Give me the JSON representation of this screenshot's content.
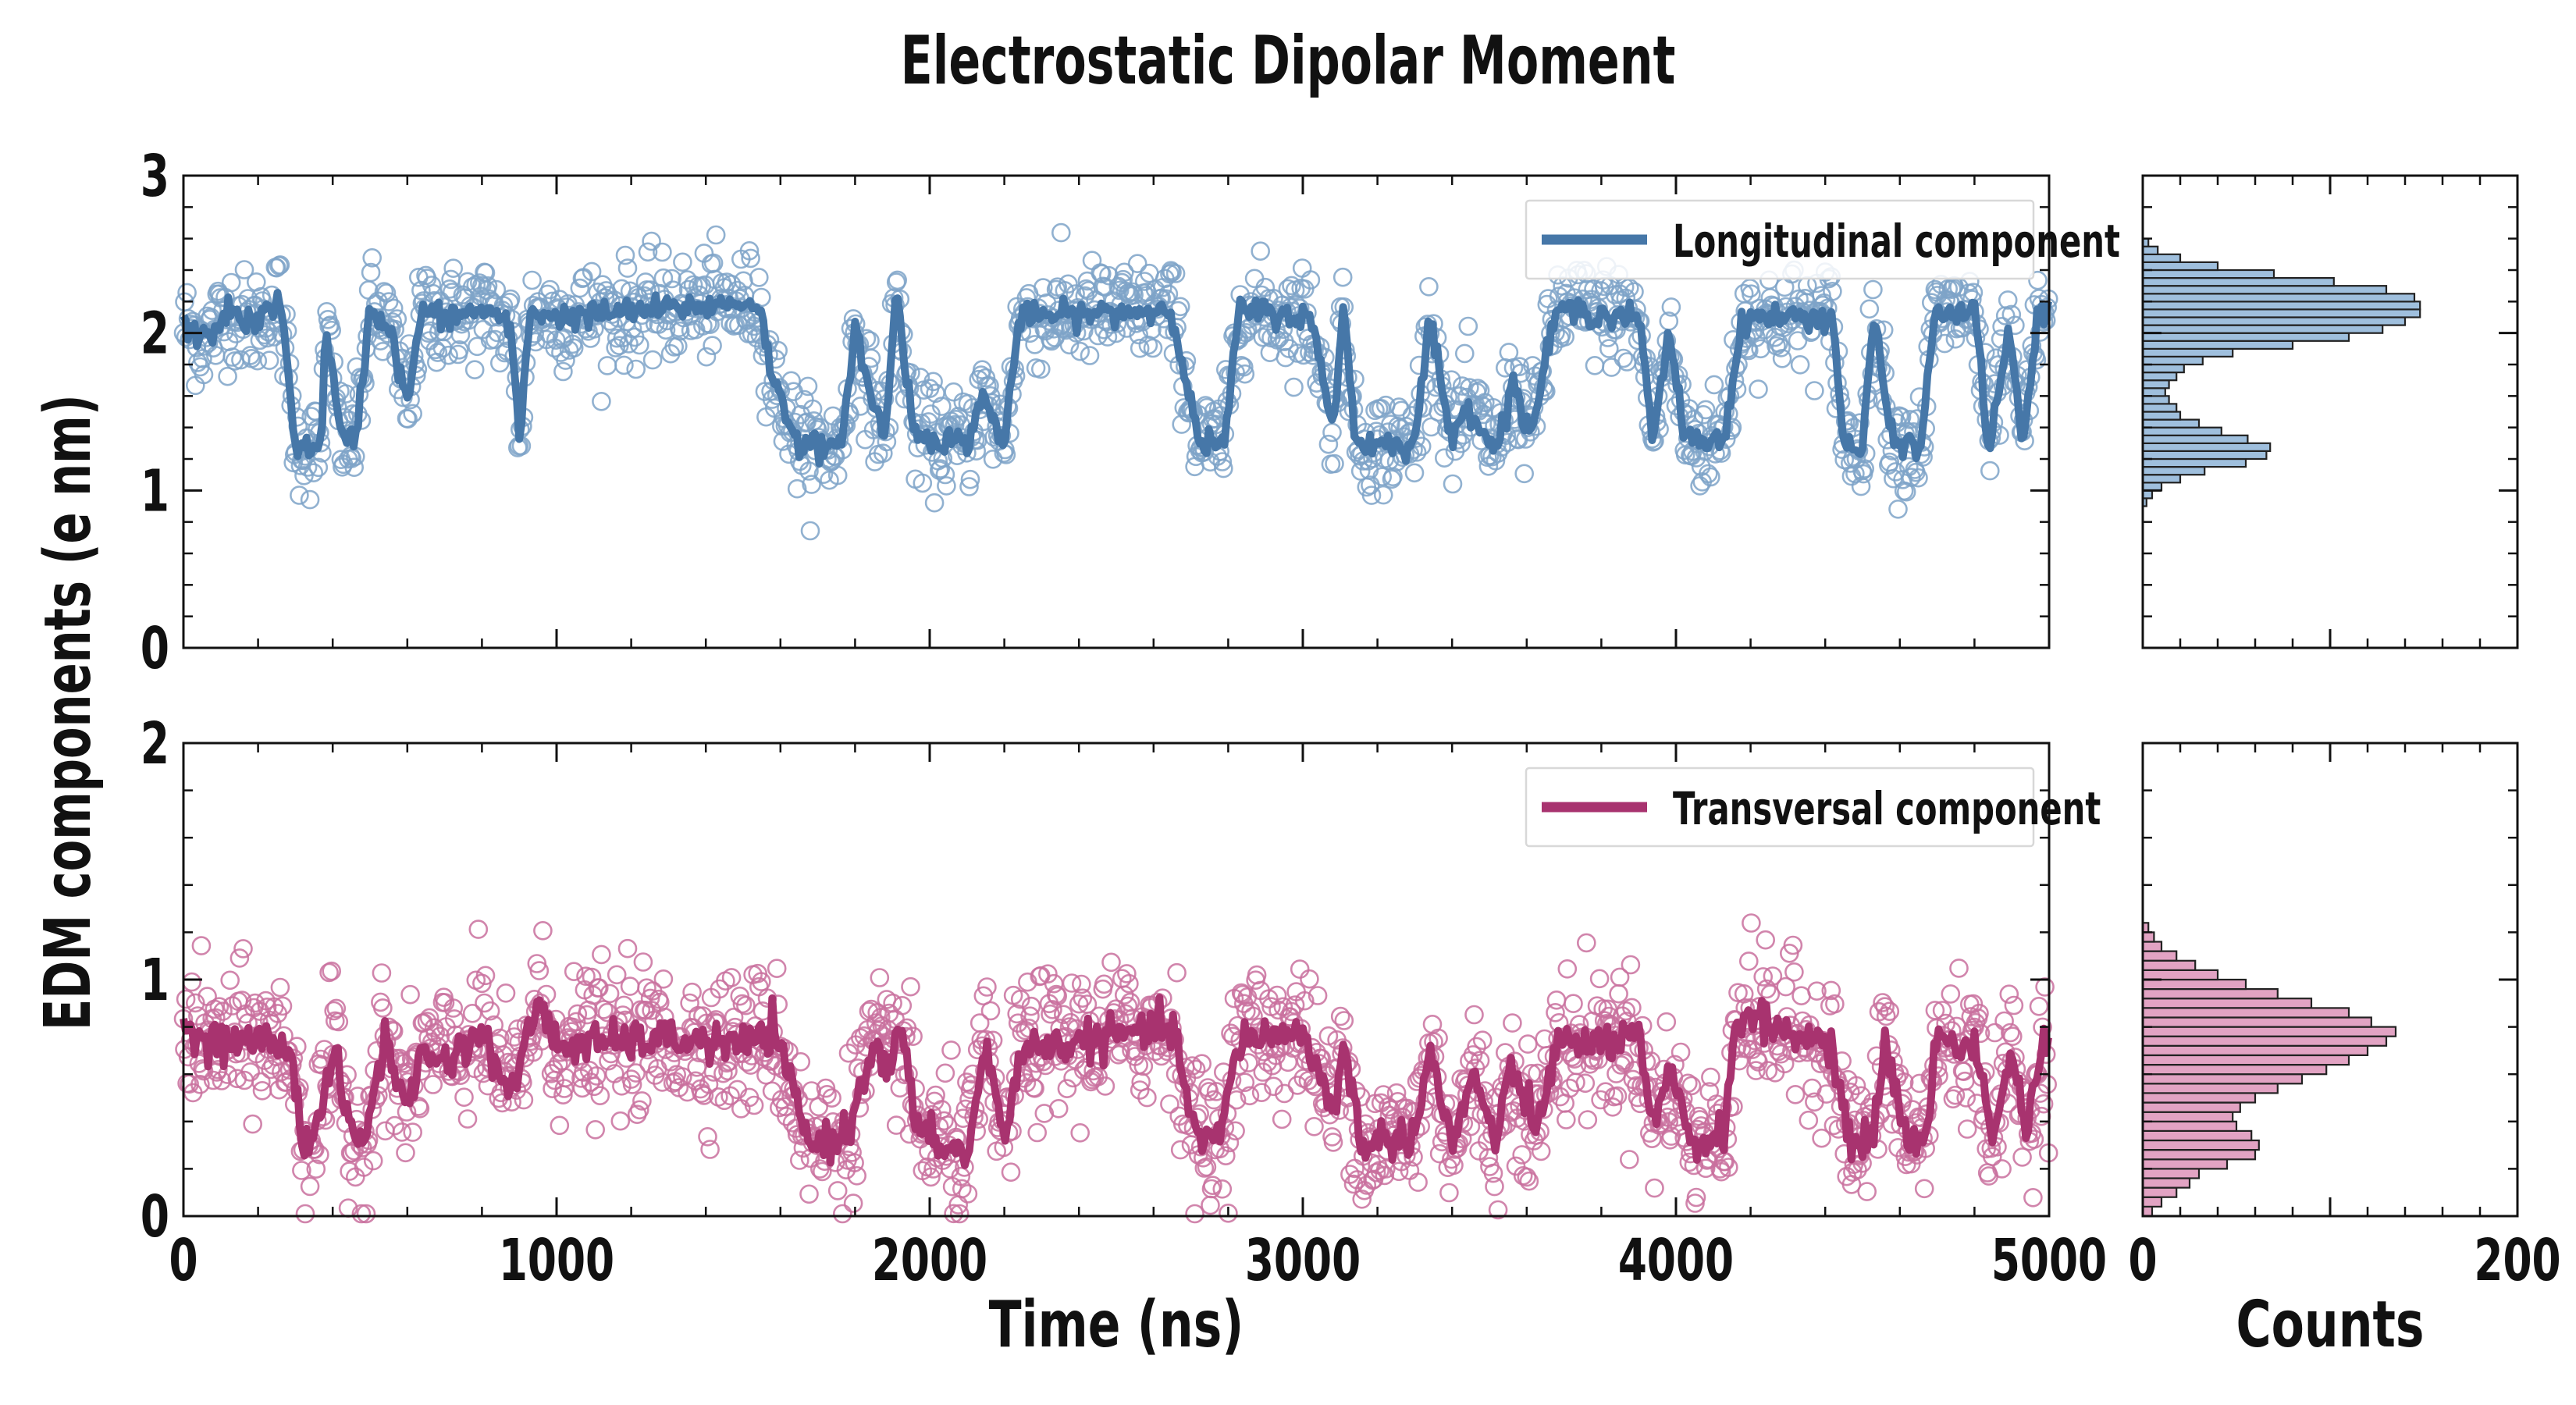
{
  "title": "Electrostatic Dipolar Moment",
  "ylabel": "EDM components (e nm)",
  "xlabel_main": "Time (ns)",
  "xlabel_hist": "Counts",
  "colors": {
    "longitudinal": "#4677a8",
    "longitudinal_light": "#7ea3c8",
    "transversal": "#a8336f",
    "transversal_light": "#c9709d",
    "hist_long_fill": "#9fbfdd",
    "hist_trans_fill": "#e2a3c3",
    "axis": "#111111"
  },
  "chart_data": [
    {
      "type": "scatter",
      "panel": "top-left",
      "xlim": [
        0,
        5000
      ],
      "ylim": [
        0,
        3
      ],
      "xticks": [
        0,
        1000,
        2000,
        3000,
        4000,
        5000
      ],
      "yticks": [
        0,
        1,
        2,
        3
      ],
      "xticklabels_shown": false,
      "legend": {
        "label": "Longitudinal component",
        "position": "top-right"
      },
      "series": [
        {
          "name": "Longitudinal component",
          "kind": "line",
          "color": "#4677a8"
        }
      ],
      "levels": {
        "high": 2.12,
        "low": 1.3
      },
      "high_segments": [
        [
          0,
          290
        ],
        [
          1050,
          1530
        ],
        [
          2150,
          2700
        ],
        [
          2800,
          3100
        ],
        [
          3660,
          3970
        ],
        [
          4160,
          4440
        ],
        [
          4680,
          4840
        ],
        [
          4920,
          5000
        ]
      ],
      "transitions": [
        {
          "x": 0,
          "y": 2.05
        },
        {
          "x": 60,
          "y": 1.95
        },
        {
          "x": 120,
          "y": 2.15
        },
        {
          "x": 180,
          "y": 2.05
        },
        {
          "x": 260,
          "y": 2.2
        },
        {
          "x": 300,
          "y": 1.3
        },
        {
          "x": 370,
          "y": 1.25
        },
        {
          "x": 380,
          "y": 2.1
        },
        {
          "x": 420,
          "y": 1.35
        },
        {
          "x": 460,
          "y": 1.3
        },
        {
          "x": 500,
          "y": 2.15
        },
        {
          "x": 550,
          "y": 2.05
        },
        {
          "x": 600,
          "y": 1.55
        },
        {
          "x": 640,
          "y": 2.15
        },
        {
          "x": 700,
          "y": 2.1
        },
        {
          "x": 820,
          "y": 2.15
        },
        {
          "x": 880,
          "y": 2.0
        },
        {
          "x": 900,
          "y": 1.3
        },
        {
          "x": 930,
          "y": 2.15
        },
        {
          "x": 1000,
          "y": 2.1
        },
        {
          "x": 1540,
          "y": 2.2
        },
        {
          "x": 1580,
          "y": 1.7
        },
        {
          "x": 1650,
          "y": 1.3
        },
        {
          "x": 1760,
          "y": 1.25
        },
        {
          "x": 1800,
          "y": 2.05
        },
        {
          "x": 1840,
          "y": 1.6
        },
        {
          "x": 1880,
          "y": 1.35
        },
        {
          "x": 1910,
          "y": 2.25
        },
        {
          "x": 1960,
          "y": 1.35
        },
        {
          "x": 2100,
          "y": 1.3
        },
        {
          "x": 2140,
          "y": 1.6
        },
        {
          "x": 2200,
          "y": 1.3
        },
        {
          "x": 2240,
          "y": 2.1
        },
        {
          "x": 2650,
          "y": 2.15
        },
        {
          "x": 2720,
          "y": 1.3
        },
        {
          "x": 2790,
          "y": 1.3
        },
        {
          "x": 2830,
          "y": 2.15
        },
        {
          "x": 3020,
          "y": 2.1
        },
        {
          "x": 3080,
          "y": 1.4
        },
        {
          "x": 3110,
          "y": 2.2
        },
        {
          "x": 3140,
          "y": 1.3
        },
        {
          "x": 3300,
          "y": 1.3
        },
        {
          "x": 3340,
          "y": 2.1
        },
        {
          "x": 3400,
          "y": 1.3
        },
        {
          "x": 3440,
          "y": 1.55
        },
        {
          "x": 3520,
          "y": 1.25
        },
        {
          "x": 3560,
          "y": 1.7
        },
        {
          "x": 3610,
          "y": 1.35
        },
        {
          "x": 3680,
          "y": 2.15
        },
        {
          "x": 3900,
          "y": 2.1
        },
        {
          "x": 3940,
          "y": 1.3
        },
        {
          "x": 3980,
          "y": 2.0
        },
        {
          "x": 4020,
          "y": 1.4
        },
        {
          "x": 4060,
          "y": 1.3
        },
        {
          "x": 4130,
          "y": 1.35
        },
        {
          "x": 4180,
          "y": 2.1
        },
        {
          "x": 4420,
          "y": 2.1
        },
        {
          "x": 4450,
          "y": 1.3
        },
        {
          "x": 4500,
          "y": 1.25
        },
        {
          "x": 4530,
          "y": 2.1
        },
        {
          "x": 4580,
          "y": 1.3
        },
        {
          "x": 4660,
          "y": 1.3
        },
        {
          "x": 4690,
          "y": 2.1
        },
        {
          "x": 4800,
          "y": 2.15
        },
        {
          "x": 4840,
          "y": 1.25
        },
        {
          "x": 4890,
          "y": 2.0
        },
        {
          "x": 4930,
          "y": 1.3
        },
        {
          "x": 4970,
          "y": 2.1
        },
        {
          "x": 5000,
          "y": 2.15
        }
      ],
      "point_scatter_sd": 0.16
    },
    {
      "type": "bar",
      "orientation": "horizontal",
      "panel": "top-right",
      "xlim": [
        0,
        200
      ],
      "ylim": [
        0,
        3
      ],
      "bin_width": 0.05,
      "bin_starts": [
        0.9,
        0.95,
        1.0,
        1.05,
        1.1,
        1.15,
        1.2,
        1.25,
        1.3,
        1.35,
        1.4,
        1.45,
        1.5,
        1.55,
        1.6,
        1.65,
        1.7,
        1.75,
        1.8,
        1.85,
        1.9,
        1.95,
        2.0,
        2.05,
        2.1,
        2.15,
        2.2,
        2.25,
        2.3,
        2.35,
        2.4,
        2.45,
        2.5,
        2.55
      ],
      "values": [
        2,
        5,
        10,
        20,
        33,
        55,
        66,
        68,
        56,
        42,
        30,
        20,
        18,
        14,
        12,
        14,
        18,
        22,
        32,
        48,
        80,
        110,
        128,
        140,
        148,
        148,
        145,
        130,
        102,
        70,
        40,
        20,
        8,
        3
      ]
    },
    {
      "type": "scatter",
      "panel": "bottom-left",
      "xlim": [
        0,
        5000
      ],
      "ylim": [
        0,
        2
      ],
      "xticks": [
        0,
        1000,
        2000,
        3000,
        4000,
        5000
      ],
      "yticks": [
        0,
        1,
        2
      ],
      "xlabel": "Time (ns)",
      "legend": {
        "label": "Transversal component",
        "position": "top-right"
      },
      "series": [
        {
          "name": "Transversal component",
          "kind": "line",
          "color": "#a8336f"
        }
      ],
      "levels": {
        "high": 0.72,
        "low": 0.3
      },
      "transitions": [
        {
          "x": 0,
          "y": 0.8
        },
        {
          "x": 60,
          "y": 0.72
        },
        {
          "x": 200,
          "y": 0.75
        },
        {
          "x": 290,
          "y": 0.7
        },
        {
          "x": 320,
          "y": 0.3
        },
        {
          "x": 360,
          "y": 0.38
        },
        {
          "x": 400,
          "y": 0.7
        },
        {
          "x": 450,
          "y": 0.35
        },
        {
          "x": 480,
          "y": 0.3
        },
        {
          "x": 540,
          "y": 0.75
        },
        {
          "x": 600,
          "y": 0.45
        },
        {
          "x": 640,
          "y": 0.7
        },
        {
          "x": 700,
          "y": 0.65
        },
        {
          "x": 800,
          "y": 0.78
        },
        {
          "x": 880,
          "y": 0.5
        },
        {
          "x": 950,
          "y": 0.92
        },
        {
          "x": 1000,
          "y": 0.72
        },
        {
          "x": 1300,
          "y": 0.75
        },
        {
          "x": 1500,
          "y": 0.72
        },
        {
          "x": 1580,
          "y": 0.78
        },
        {
          "x": 1640,
          "y": 0.5
        },
        {
          "x": 1680,
          "y": 0.3
        },
        {
          "x": 1780,
          "y": 0.35
        },
        {
          "x": 1850,
          "y": 0.75
        },
        {
          "x": 1890,
          "y": 0.6
        },
        {
          "x": 1920,
          "y": 0.8
        },
        {
          "x": 1970,
          "y": 0.35
        },
        {
          "x": 2100,
          "y": 0.25
        },
        {
          "x": 2150,
          "y": 0.72
        },
        {
          "x": 2200,
          "y": 0.3
        },
        {
          "x": 2240,
          "y": 0.7
        },
        {
          "x": 2650,
          "y": 0.8
        },
        {
          "x": 2720,
          "y": 0.3
        },
        {
          "x": 2780,
          "y": 0.35
        },
        {
          "x": 2830,
          "y": 0.75
        },
        {
          "x": 3000,
          "y": 0.78
        },
        {
          "x": 3080,
          "y": 0.45
        },
        {
          "x": 3110,
          "y": 0.7
        },
        {
          "x": 3160,
          "y": 0.3
        },
        {
          "x": 3300,
          "y": 0.35
        },
        {
          "x": 3340,
          "y": 0.7
        },
        {
          "x": 3400,
          "y": 0.3
        },
        {
          "x": 3460,
          "y": 0.6
        },
        {
          "x": 3520,
          "y": 0.3
        },
        {
          "x": 3560,
          "y": 0.65
        },
        {
          "x": 3620,
          "y": 0.35
        },
        {
          "x": 3680,
          "y": 0.72
        },
        {
          "x": 3900,
          "y": 0.75
        },
        {
          "x": 3940,
          "y": 0.35
        },
        {
          "x": 3980,
          "y": 0.6
        },
        {
          "x": 4050,
          "y": 0.3
        },
        {
          "x": 4130,
          "y": 0.35
        },
        {
          "x": 4160,
          "y": 0.85
        },
        {
          "x": 4420,
          "y": 0.72
        },
        {
          "x": 4460,
          "y": 0.3
        },
        {
          "x": 4530,
          "y": 0.35
        },
        {
          "x": 4560,
          "y": 0.75
        },
        {
          "x": 4620,
          "y": 0.3
        },
        {
          "x": 4670,
          "y": 0.35
        },
        {
          "x": 4700,
          "y": 0.75
        },
        {
          "x": 4800,
          "y": 0.72
        },
        {
          "x": 4850,
          "y": 0.35
        },
        {
          "x": 4900,
          "y": 0.7
        },
        {
          "x": 4940,
          "y": 0.35
        },
        {
          "x": 4980,
          "y": 0.7
        },
        {
          "x": 5000,
          "y": 0.72
        }
      ],
      "point_scatter_sd": 0.15
    },
    {
      "type": "bar",
      "orientation": "horizontal",
      "panel": "bottom-right",
      "xlim": [
        0,
        200
      ],
      "xticks": [
        0,
        200
      ],
      "xlabel": "Counts",
      "ylim": [
        0,
        2
      ],
      "bin_width": 0.04,
      "bin_starts": [
        0.0,
        0.04,
        0.08,
        0.12,
        0.16,
        0.2,
        0.24,
        0.28,
        0.32,
        0.36,
        0.4,
        0.44,
        0.48,
        0.52,
        0.56,
        0.6,
        0.64,
        0.68,
        0.72,
        0.76,
        0.8,
        0.84,
        0.88,
        0.92,
        0.96,
        1.0,
        1.04,
        1.08,
        1.12,
        1.16,
        1.2
      ],
      "values": [
        5,
        10,
        18,
        25,
        30,
        45,
        60,
        62,
        58,
        50,
        48,
        52,
        60,
        72,
        85,
        98,
        110,
        120,
        130,
        135,
        122,
        110,
        90,
        72,
        55,
        40,
        28,
        18,
        10,
        6,
        3
      ]
    }
  ]
}
